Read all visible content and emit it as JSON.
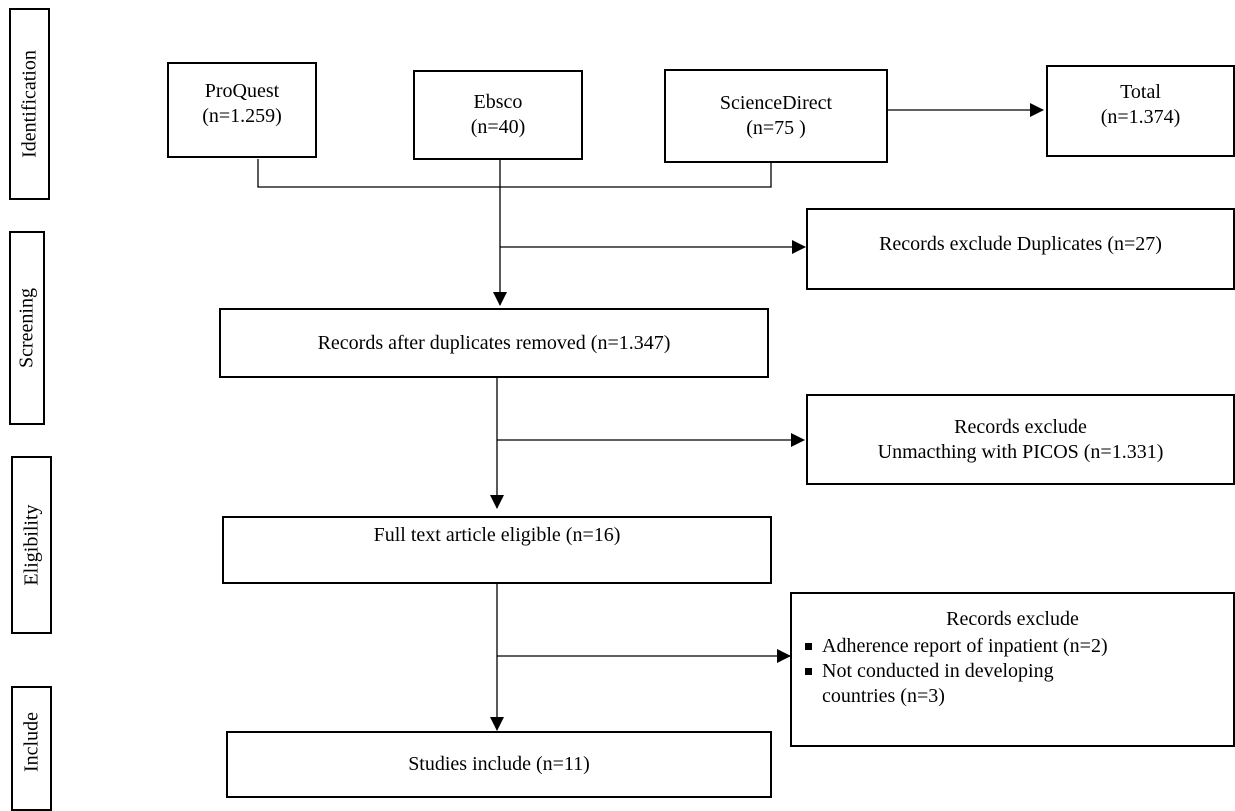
{
  "phases": {
    "identification": "Identification",
    "screening": "Screening",
    "eligibility": "Eligibility",
    "include": "Include"
  },
  "sources": {
    "proquest": {
      "name": "ProQuest",
      "count": "(n=1.259)"
    },
    "ebsco": {
      "name": "Ebsco",
      "count": "(n=40)"
    },
    "sciencedirect": {
      "name": "ScienceDirect",
      "count": "(n=75 )"
    },
    "total": {
      "name": "Total",
      "count": "(n=1.374)"
    }
  },
  "steps": {
    "exclude_duplicates": "Records exclude Duplicates (n=27)",
    "after_duplicates": "Records after duplicates removed (n=1.347)",
    "exclude_picos_title": "Records exclude",
    "exclude_picos_detail": "Unmacthing with PICOS (n=1.331)",
    "full_text": "Full text article eligible (n=16)",
    "exclude_final_title": "Records exclude",
    "exclude_final_items": [
      "Adherence report of inpatient (n=2)",
      "Not conducted in developing countries (n=3)"
    ],
    "studies_include": "Studies include (n=11)"
  }
}
